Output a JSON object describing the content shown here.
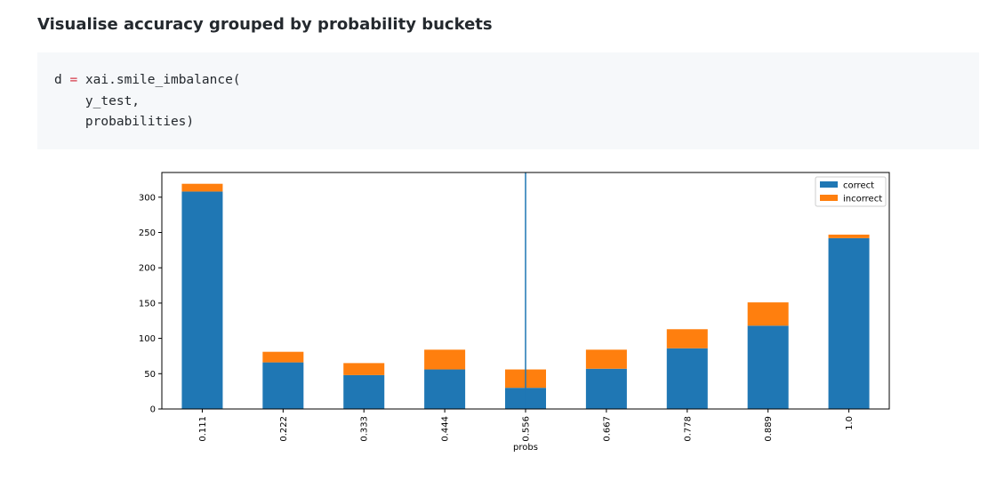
{
  "heading": "Visualise accuracy grouped by probability buckets",
  "code": {
    "line1_var": "d",
    "line1_op": "=",
    "line1_call": "xai.smile_imbalance(",
    "line2": "    y_test,",
    "line3": "    probabilities)"
  },
  "colors": {
    "correct": "#1f77b4",
    "incorrect": "#ff7f0e",
    "vline": "#1f77b4"
  },
  "chart_data": {
    "type": "bar",
    "stacked": true,
    "categories": [
      "0.111",
      "0.222",
      "0.333",
      "0.444",
      "0.556",
      "0.667",
      "0.778",
      "0.889",
      "1.0"
    ],
    "series": [
      {
        "name": "correct",
        "values": [
          308,
          66,
          48,
          56,
          30,
          57,
          86,
          118,
          242
        ]
      },
      {
        "name": "incorrect",
        "values": [
          11,
          15,
          17,
          28,
          26,
          27,
          27,
          33,
          5
        ]
      }
    ],
    "xlabel": "probs",
    "ylabel": "",
    "ylim": [
      0,
      335
    ],
    "yticks": [
      0,
      50,
      100,
      150,
      200,
      250,
      300
    ],
    "vline_at_category_index": 4,
    "legend": {
      "position": "top-right",
      "entries": [
        "correct",
        "incorrect"
      ]
    }
  }
}
